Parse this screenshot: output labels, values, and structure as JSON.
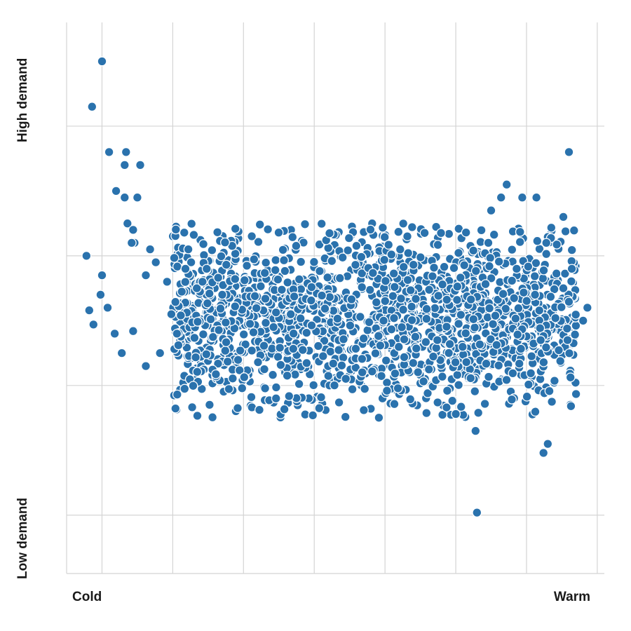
{
  "chart_data": {
    "type": "scatter",
    "title": "",
    "xlabel_low": "Cold",
    "xlabel_high": "Warm",
    "ylabel_low": "Low demand",
    "ylabel_high": "High demand",
    "point_color": "#2a72ad",
    "grid": true,
    "xlim": [
      -2.5,
      35.5
    ],
    "ylim": [
      -0.75,
      3.5
    ],
    "x_gridlines": [
      0,
      5,
      10,
      15,
      20,
      25,
      30,
      35
    ],
    "y_gridlines": [
      -0.3,
      0.7,
      1.7,
      2.7
    ],
    "series": [
      {
        "points": [
          [
            0.0,
            3.2
          ],
          [
            -0.7,
            2.85
          ],
          [
            0.5,
            2.5
          ],
          [
            1.7,
            2.5
          ],
          [
            1.6,
            2.4
          ],
          [
            2.7,
            2.4
          ],
          [
            -1.1,
            1.7
          ],
          [
            1.0,
            2.2
          ],
          [
            1.6,
            2.15
          ],
          [
            2.5,
            2.15
          ],
          [
            1.8,
            1.95
          ],
          [
            2.2,
            1.9
          ],
          [
            2.3,
            1.8
          ],
          [
            2.1,
            1.8
          ],
          [
            0.0,
            1.55
          ],
          [
            3.4,
            1.75
          ],
          [
            3.8,
            1.65
          ],
          [
            3.1,
            1.55
          ],
          [
            0.4,
            1.3
          ],
          [
            -0.9,
            1.28
          ],
          [
            -0.6,
            1.17
          ],
          [
            0.9,
            1.1
          ],
          [
            2.2,
            1.12
          ],
          [
            1.4,
            0.95
          ],
          [
            3.1,
            0.85
          ],
          [
            4.1,
            0.95
          ],
          [
            -0.1,
            1.4
          ],
          [
            6.1,
            1.75
          ],
          [
            6.3,
            1.65
          ],
          [
            7.4,
            1.6
          ],
          [
            5.9,
            1.6
          ],
          [
            4.6,
            1.5
          ],
          [
            6.7,
            1.45
          ],
          [
            7.1,
            1.5
          ],
          [
            8.8,
            1.4
          ],
          [
            8.5,
            1.4
          ],
          [
            4.9,
            1.25
          ],
          [
            5.3,
            1.1
          ],
          [
            19.9,
            1.2
          ],
          [
            23.7,
            1.05
          ],
          [
            28.2,
            2.15
          ],
          [
            29.7,
            2.15
          ],
          [
            30.7,
            2.15
          ],
          [
            27.5,
            2.05
          ],
          [
            28.6,
            2.25
          ],
          [
            27.3,
            1.8
          ],
          [
            31.4,
            1.8
          ],
          [
            29.3,
            1.6
          ],
          [
            32.6,
            1.45
          ],
          [
            33.2,
            1.6
          ],
          [
            34.0,
            1.2
          ],
          [
            32.6,
            2.0
          ],
          [
            33.0,
            2.5
          ],
          [
            34.3,
            1.3
          ],
          [
            30.6,
            1.4
          ],
          [
            32.9,
            1.05
          ],
          [
            31.0,
            1.05
          ],
          [
            26.5,
            -0.28
          ],
          [
            31.2,
            0.18
          ],
          [
            31.5,
            0.25
          ],
          [
            26.4,
            0.35
          ],
          [
            14.9,
            0.47
          ],
          [
            12.3,
            0.6
          ],
          [
            25.0,
            0.48
          ],
          [
            18.5,
            0.51
          ]
        ]
      }
    ],
    "cloud": {
      "x_range": [
        5.0,
        33.5
      ],
      "y_center": 1.22,
      "y_spread": 0.62,
      "count": 1750
    }
  }
}
